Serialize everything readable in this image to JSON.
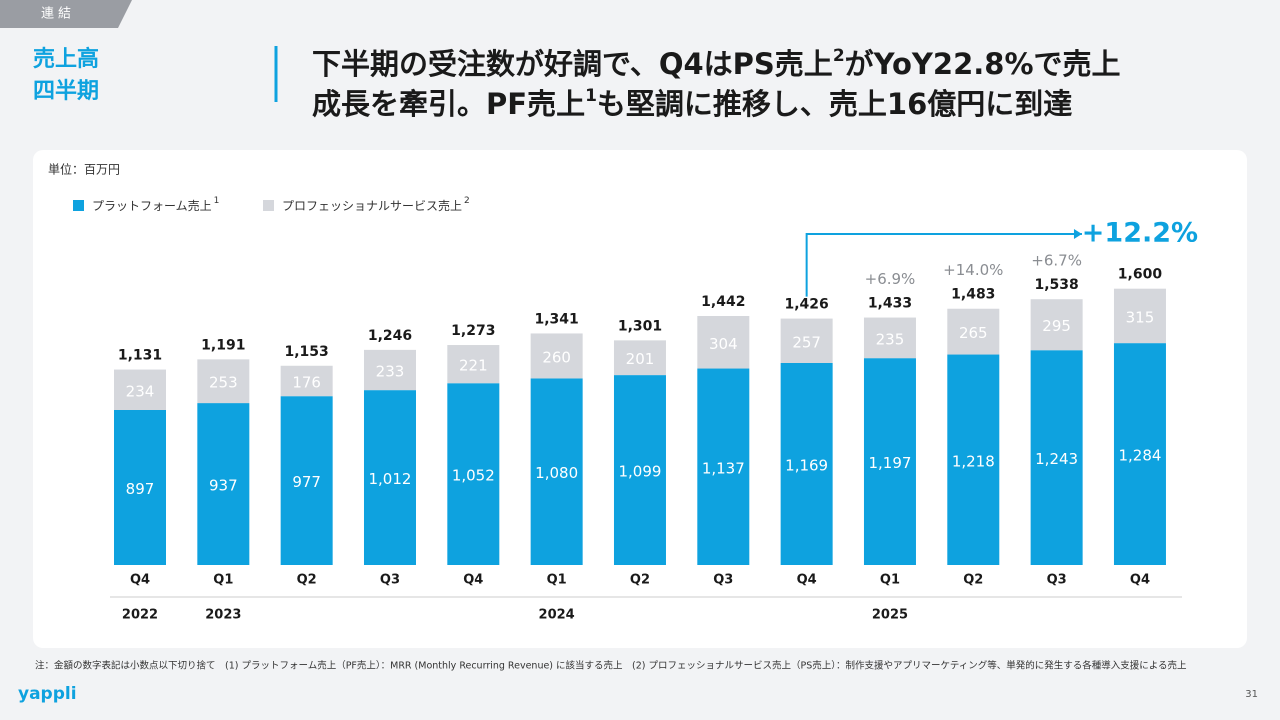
{
  "header": {
    "badge": "連結",
    "section": [
      "売上高",
      "四半期"
    ],
    "title": [
      "下半期の受注数が好調で、Q4はPS売上",
      "2",
      "がYoY22.8%で売上",
      "成長を牽引。PF売上",
      "1",
      "も堅調に推移し、売上16億円に到達"
    ]
  },
  "chart_data": {
    "type": "stacked-bar",
    "unit": "単位：百万円",
    "categories": [
      "Q4",
      "Q1",
      "Q2",
      "Q3",
      "Q4",
      "Q1",
      "Q2",
      "Q3",
      "Q4",
      "Q1",
      "Q2",
      "Q3",
      "Q4"
    ],
    "years": [
      "2022",
      "2023",
      null,
      null,
      null,
      "2024",
      null,
      null,
      null,
      "2025",
      null,
      null,
      null
    ],
    "series": [
      {
        "name": "プラットフォーム売上",
        "note_ref": "1",
        "color": "#0ea2df",
        "values": [
          897,
          937,
          977,
          1012,
          1052,
          1080,
          1099,
          1137,
          1169,
          1197,
          1218,
          1243,
          1284
        ],
        "value_labels": [
          "897",
          "937",
          "977",
          "1,012",
          "1,052",
          "1,080",
          "1,099",
          "1,137",
          "1,169",
          "1,197",
          "1,218",
          "1,243",
          "1,284"
        ]
      },
      {
        "name": "プロフェッショナルサービス売上",
        "note_ref": "2",
        "color": "#d5d7dc",
        "values": [
          234,
          253,
          176,
          233,
          221,
          260,
          201,
          304,
          257,
          235,
          265,
          295,
          315
        ],
        "value_labels": [
          "234",
          "253",
          "176",
          "233",
          "221",
          "260",
          "201",
          "304",
          "257",
          "235",
          "265",
          "295",
          "315"
        ]
      }
    ],
    "totals": [
      1131,
      1191,
      1153,
      1246,
      1273,
      1341,
      1301,
      1442,
      1426,
      1433,
      1483,
      1538,
      1600
    ],
    "total_labels": [
      "1,131",
      "1,191",
      "1,153",
      "1,246",
      "1,273",
      "1,341",
      "1,301",
      "1,442",
      "1,426",
      "1,433",
      "1,483",
      "1,538",
      "1,600"
    ],
    "yoy_labels": [
      null,
      null,
      null,
      null,
      null,
      null,
      null,
      null,
      null,
      "+6.9%",
      "+14.0%",
      "+6.7%",
      "+12.2%"
    ]
  },
  "footer": {
    "note": "注：金額の数字表記は小数点以下切り捨て　(1) プラットフォーム売上（PF売上）：MRR (Monthly Recurring Revenue) に該当する売上　(2) プロフェッショナルサービス売上（PS売上）：制作支援やアプリマーケティング等、単発的に発生する各種導入支援による売上",
    "logo": "yappli",
    "page": "31"
  }
}
